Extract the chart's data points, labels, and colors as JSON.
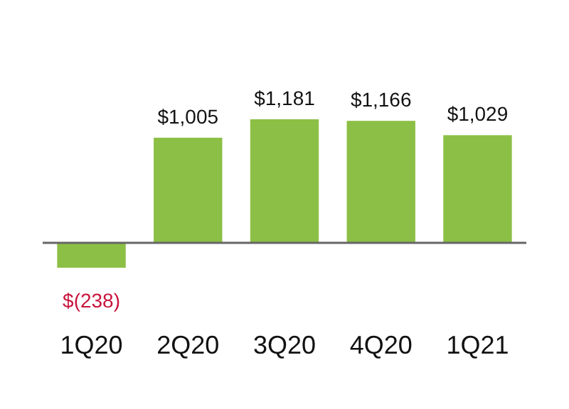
{
  "chart_data": {
    "type": "bar",
    "categories": [
      "1Q20",
      "2Q20",
      "3Q20",
      "4Q20",
      "1Q21"
    ],
    "values": [
      -238,
      1005,
      1181,
      1166,
      1029
    ],
    "color": "#8cbf45",
    "value_labels": [
      "$(238)",
      "$1,005",
      "$1,181",
      "$1,166",
      "$1,029"
    ],
    "relative": false
  }
}
